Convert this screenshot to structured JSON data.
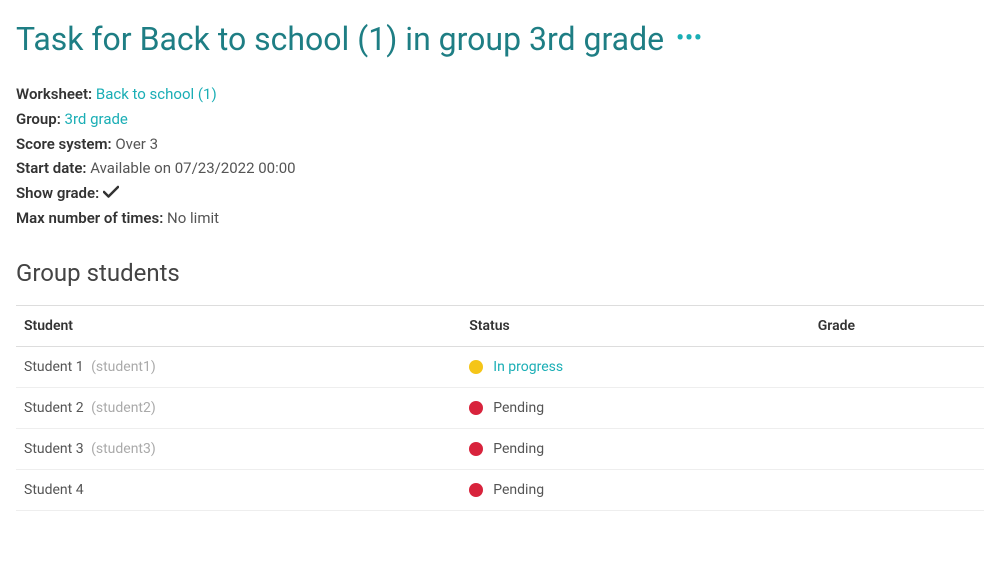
{
  "colors": {
    "title": "#1e7e84",
    "accent": "#1aaeb5",
    "text": "#333333",
    "muted": "#555555",
    "username": "#aaaaaa",
    "border": "#dddddd",
    "rowBorder": "#eeeeee",
    "bg": "#ffffff",
    "status_in_progress_dot": "#f5c518",
    "status_in_progress_text": "#1aaeb5",
    "status_pending_dot": "#d8233c",
    "status_pending_text": "#555555"
  },
  "header": {
    "title": "Task for Back to school (1) in group 3rd grade"
  },
  "meta": {
    "worksheet": {
      "label": "Worksheet:",
      "value": "Back to school (1)",
      "isLink": true
    },
    "group": {
      "label": "Group:",
      "value": "3rd grade",
      "isLink": true
    },
    "score": {
      "label": "Score system:",
      "value": "Over 3"
    },
    "start": {
      "label": "Start date:",
      "value": "Available on 07/23/2022 00:00"
    },
    "showGrade": {
      "label": "Show grade:",
      "checked": true
    },
    "maxTimes": {
      "label": "Max number of times:",
      "value": "No limit"
    }
  },
  "section": {
    "title": "Group students"
  },
  "table": {
    "headers": {
      "student": "Student",
      "status": "Status",
      "grade": "Grade"
    },
    "rows": [
      {
        "name": "Student 1",
        "username": "(student1)",
        "statusText": "In progress",
        "statusDot": "#f5c518",
        "statusColor": "#1aaeb5",
        "grade": ""
      },
      {
        "name": "Student 2",
        "username": "(student2)",
        "statusText": "Pending",
        "statusDot": "#d8233c",
        "statusColor": "#555555",
        "grade": ""
      },
      {
        "name": "Student 3",
        "username": "(student3)",
        "statusText": "Pending",
        "statusDot": "#d8233c",
        "statusColor": "#555555",
        "grade": ""
      },
      {
        "name": "Student 4",
        "username": "",
        "statusText": "Pending",
        "statusDot": "#d8233c",
        "statusColor": "#555555",
        "grade": ""
      }
    ]
  }
}
